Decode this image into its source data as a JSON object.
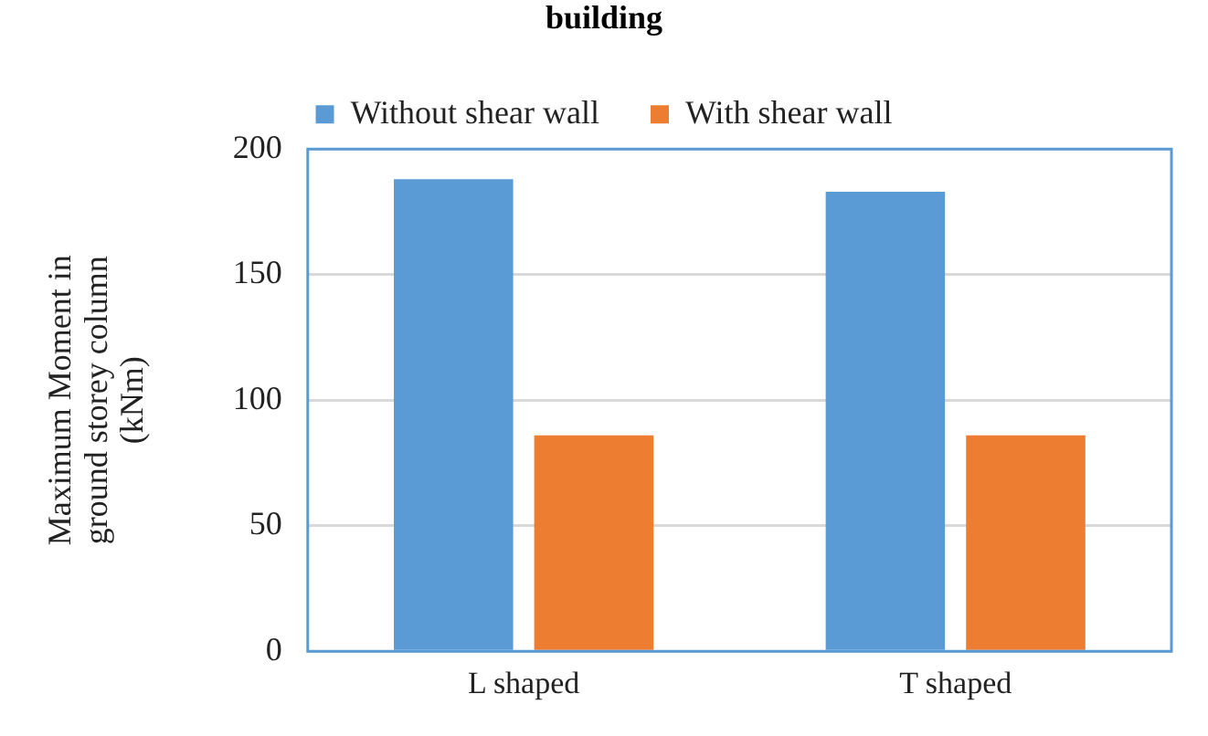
{
  "chart_data": {
    "type": "bar",
    "title": "building",
    "ylabel": "Maximum Moment in ground storey column (kNm)",
    "categories": [
      "L shaped",
      "T shaped"
    ],
    "series": [
      {
        "name": "Without shear wall",
        "color": "#5b9bd5",
        "values": [
          188,
          183
        ]
      },
      {
        "name": "With shear wall",
        "color": "#ed7d31",
        "values": [
          86,
          86
        ]
      }
    ],
    "ylim": [
      0,
      200
    ],
    "yticks": [
      0,
      50,
      100,
      150,
      200
    ],
    "grid": "y",
    "legend": "top"
  }
}
